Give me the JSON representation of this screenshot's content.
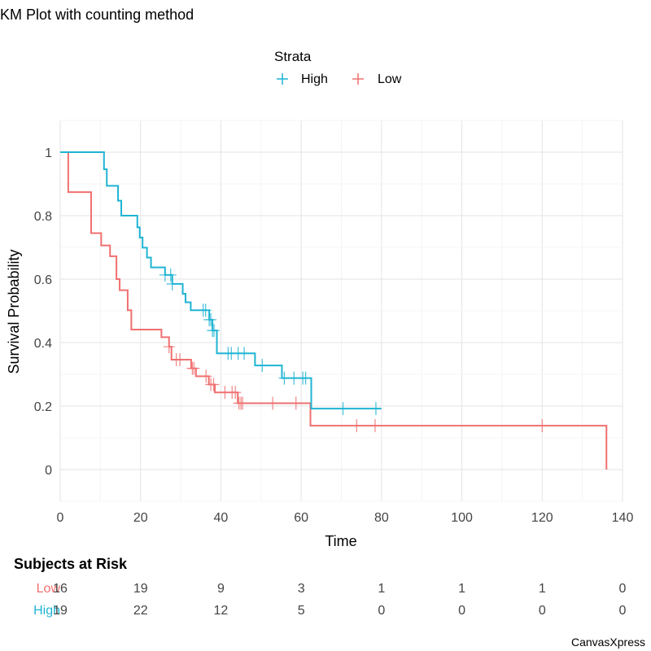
{
  "chart_data": {
    "type": "line",
    "subtype": "kaplan-meier",
    "title": "KM Plot with counting method",
    "xlabel": "Time",
    "ylabel": "Survival Probability",
    "xlim": [
      0,
      140
    ],
    "ylim": [
      -0.1,
      1.1
    ],
    "xticks": [
      0,
      20,
      40,
      60,
      80,
      100,
      120,
      140
    ],
    "yticks": [
      0,
      0.2,
      0.4,
      0.6,
      0.8,
      1
    ],
    "ytick_labels": [
      "0",
      "0.2",
      "0.4",
      "0.6",
      "0.8",
      "1"
    ],
    "grid": true,
    "legend": {
      "title": "Strata",
      "position": "top",
      "entries": [
        "High",
        "Low"
      ]
    },
    "series": [
      {
        "name": "High",
        "color": "#1FB4D3",
        "steps": [
          [
            0,
            1.0
          ],
          [
            10.9,
            0.946
          ],
          [
            11.6,
            0.894
          ],
          [
            14.4,
            0.847
          ],
          [
            15.2,
            0.8
          ],
          [
            19.2,
            0.763
          ],
          [
            19.8,
            0.731
          ],
          [
            20.5,
            0.699
          ],
          [
            21.6,
            0.668
          ],
          [
            22.6,
            0.637
          ],
          [
            26.1,
            0.613
          ],
          [
            27.9,
            0.585
          ],
          [
            30.5,
            0.554
          ],
          [
            31.2,
            0.527
          ],
          [
            32.5,
            0.502
          ],
          [
            37.1,
            0.472
          ],
          [
            37.9,
            0.438
          ],
          [
            39.0,
            0.366
          ],
          [
            48.5,
            0.328
          ],
          [
            55.2,
            0.288
          ],
          [
            62.5,
            0.192
          ]
        ],
        "end_time": 79.9,
        "censored": [
          26.1,
          27.5,
          27.9,
          35.6,
          36.2,
          37.1,
          37.5,
          37.9,
          38.3,
          41.8,
          42.6,
          44.3,
          45.8,
          50.3,
          55.8,
          58.2,
          60.4,
          61.1,
          70.4,
          78.6
        ]
      },
      {
        "name": "Low",
        "color": "#F07070",
        "steps": [
          [
            0,
            1.0
          ],
          [
            2.0,
            0.874
          ],
          [
            7.7,
            0.745
          ],
          [
            10.2,
            0.706
          ],
          [
            12.4,
            0.672
          ],
          [
            14.0,
            0.6
          ],
          [
            14.8,
            0.565
          ],
          [
            16.8,
            0.502
          ],
          [
            17.7,
            0.441
          ],
          [
            25.2,
            0.417
          ],
          [
            27.1,
            0.387
          ],
          [
            27.7,
            0.346
          ],
          [
            32.6,
            0.319
          ],
          [
            33.8,
            0.294
          ],
          [
            37.0,
            0.268
          ],
          [
            38.5,
            0.243
          ],
          [
            44.2,
            0.209
          ],
          [
            62.3,
            0.138
          ],
          [
            136.0,
            0.0
          ]
        ],
        "end_time": 136.0,
        "censored": [
          27.1,
          28.9,
          29.8,
          32.9,
          33.3,
          36.3,
          37.5,
          38.2,
          41.0,
          42.8,
          43.6,
          44.5,
          45.0,
          45.4,
          52.9,
          58.7,
          73.8,
          78.4,
          120.0
        ]
      }
    ],
    "risk_table": {
      "title": "Subjects at Risk",
      "times": [
        0,
        20,
        40,
        60,
        80,
        100,
        120,
        140
      ],
      "rows": [
        {
          "strata": "Low",
          "color": "#F07070",
          "values": [
            "16",
            "19",
            "9",
            "3",
            "1",
            "1",
            "1",
            "0"
          ]
        },
        {
          "strata": "High",
          "color": "#1FB4D3",
          "values": [
            "19",
            "22",
            "12",
            "5",
            "0",
            "0",
            "0",
            "0"
          ]
        }
      ]
    }
  },
  "credit": "CanvasXpress"
}
